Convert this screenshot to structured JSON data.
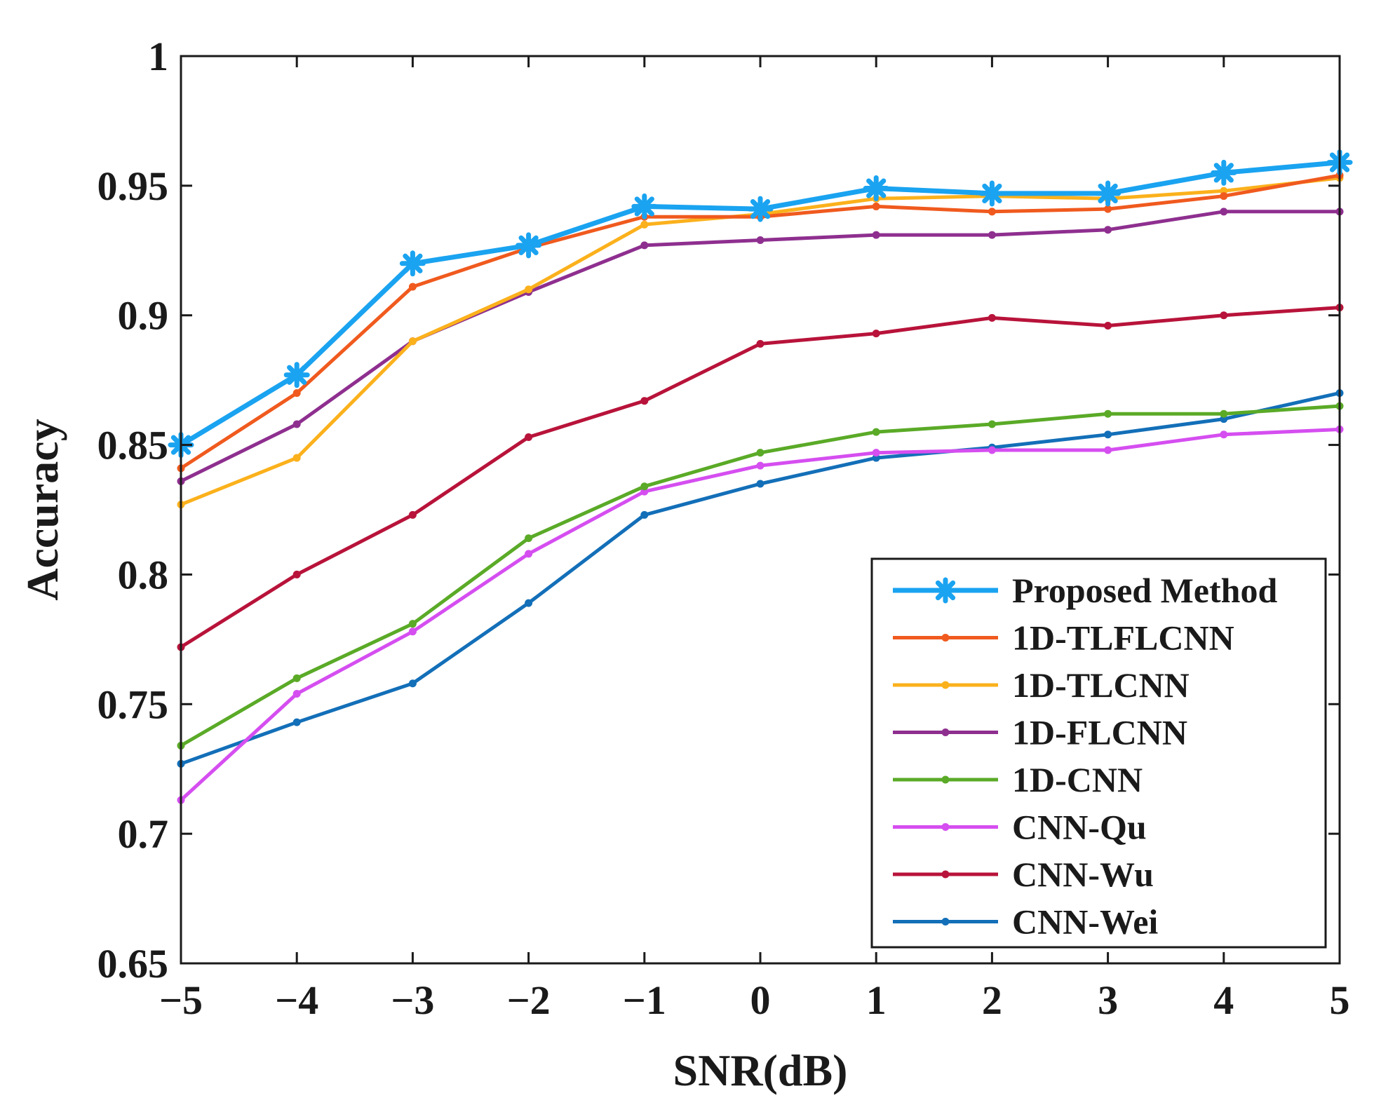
{
  "chart_data": {
    "type": "line",
    "xlabel": "SNR(dB)",
    "ylabel": "Accuracy",
    "x": [
      -5,
      -4,
      -3,
      -2,
      -1,
      0,
      1,
      2,
      3,
      4,
      5
    ],
    "x_tick_labels": [
      "−5",
      "−4",
      "−3",
      "−2",
      "−1",
      "0",
      "1",
      "2",
      "3",
      "4",
      "5"
    ],
    "xlim": [
      -5,
      5
    ],
    "ylim": [
      0.65,
      1.0
    ],
    "y_ticks": [
      0.65,
      0.7,
      0.75,
      0.8,
      0.85,
      0.9,
      0.95,
      1.0
    ],
    "y_tick_labels": [
      "0.65",
      "0.7",
      "0.75",
      "0.8",
      "0.85",
      "0.9",
      "0.95",
      "1"
    ],
    "grid": false,
    "legend_position": "bottom-right",
    "series": [
      {
        "name": "Proposed Method",
        "color": "#1aa3f0",
        "marker": "asterisk",
        "values": [
          0.85,
          0.877,
          0.92,
          0.927,
          0.942,
          0.941,
          0.949,
          0.947,
          0.947,
          0.955,
          0.959
        ]
      },
      {
        "name": "1D-TLFLCNN",
        "color": "#f05a1e",
        "marker": "dot",
        "values": [
          0.841,
          0.87,
          0.911,
          0.926,
          0.938,
          0.938,
          0.942,
          0.94,
          0.941,
          0.946,
          0.954
        ]
      },
      {
        "name": "1D-TLCNN",
        "color": "#fbb11c",
        "marker": "dot",
        "values": [
          0.827,
          0.845,
          0.89,
          0.91,
          0.935,
          0.939,
          0.945,
          0.946,
          0.945,
          0.948,
          0.953
        ]
      },
      {
        "name": "1D-FLCNN",
        "color": "#8e2f8f",
        "marker": "dot",
        "values": [
          0.836,
          0.858,
          0.89,
          0.909,
          0.927,
          0.929,
          0.931,
          0.931,
          0.933,
          0.94,
          0.94
        ]
      },
      {
        "name": "1D-CNN",
        "color": "#5aaa27",
        "marker": "dot",
        "values": [
          0.734,
          0.76,
          0.781,
          0.814,
          0.834,
          0.847,
          0.855,
          0.858,
          0.862,
          0.862,
          0.865
        ]
      },
      {
        "name": "CNN-Qu",
        "color": "#d54ef0",
        "marker": "dot",
        "values": [
          0.713,
          0.754,
          0.778,
          0.808,
          0.832,
          0.842,
          0.847,
          0.848,
          0.848,
          0.854,
          0.856
        ]
      },
      {
        "name": "CNN-Wu",
        "color": "#b8133a",
        "marker": "dot",
        "values": [
          0.772,
          0.8,
          0.823,
          0.853,
          0.867,
          0.889,
          0.893,
          0.899,
          0.896,
          0.9,
          0.903
        ]
      },
      {
        "name": "CNN-Wei",
        "color": "#136fb8",
        "marker": "dot",
        "values": [
          0.727,
          0.743,
          0.758,
          0.789,
          0.823,
          0.835,
          0.845,
          0.849,
          0.854,
          0.86,
          0.87
        ]
      }
    ]
  }
}
